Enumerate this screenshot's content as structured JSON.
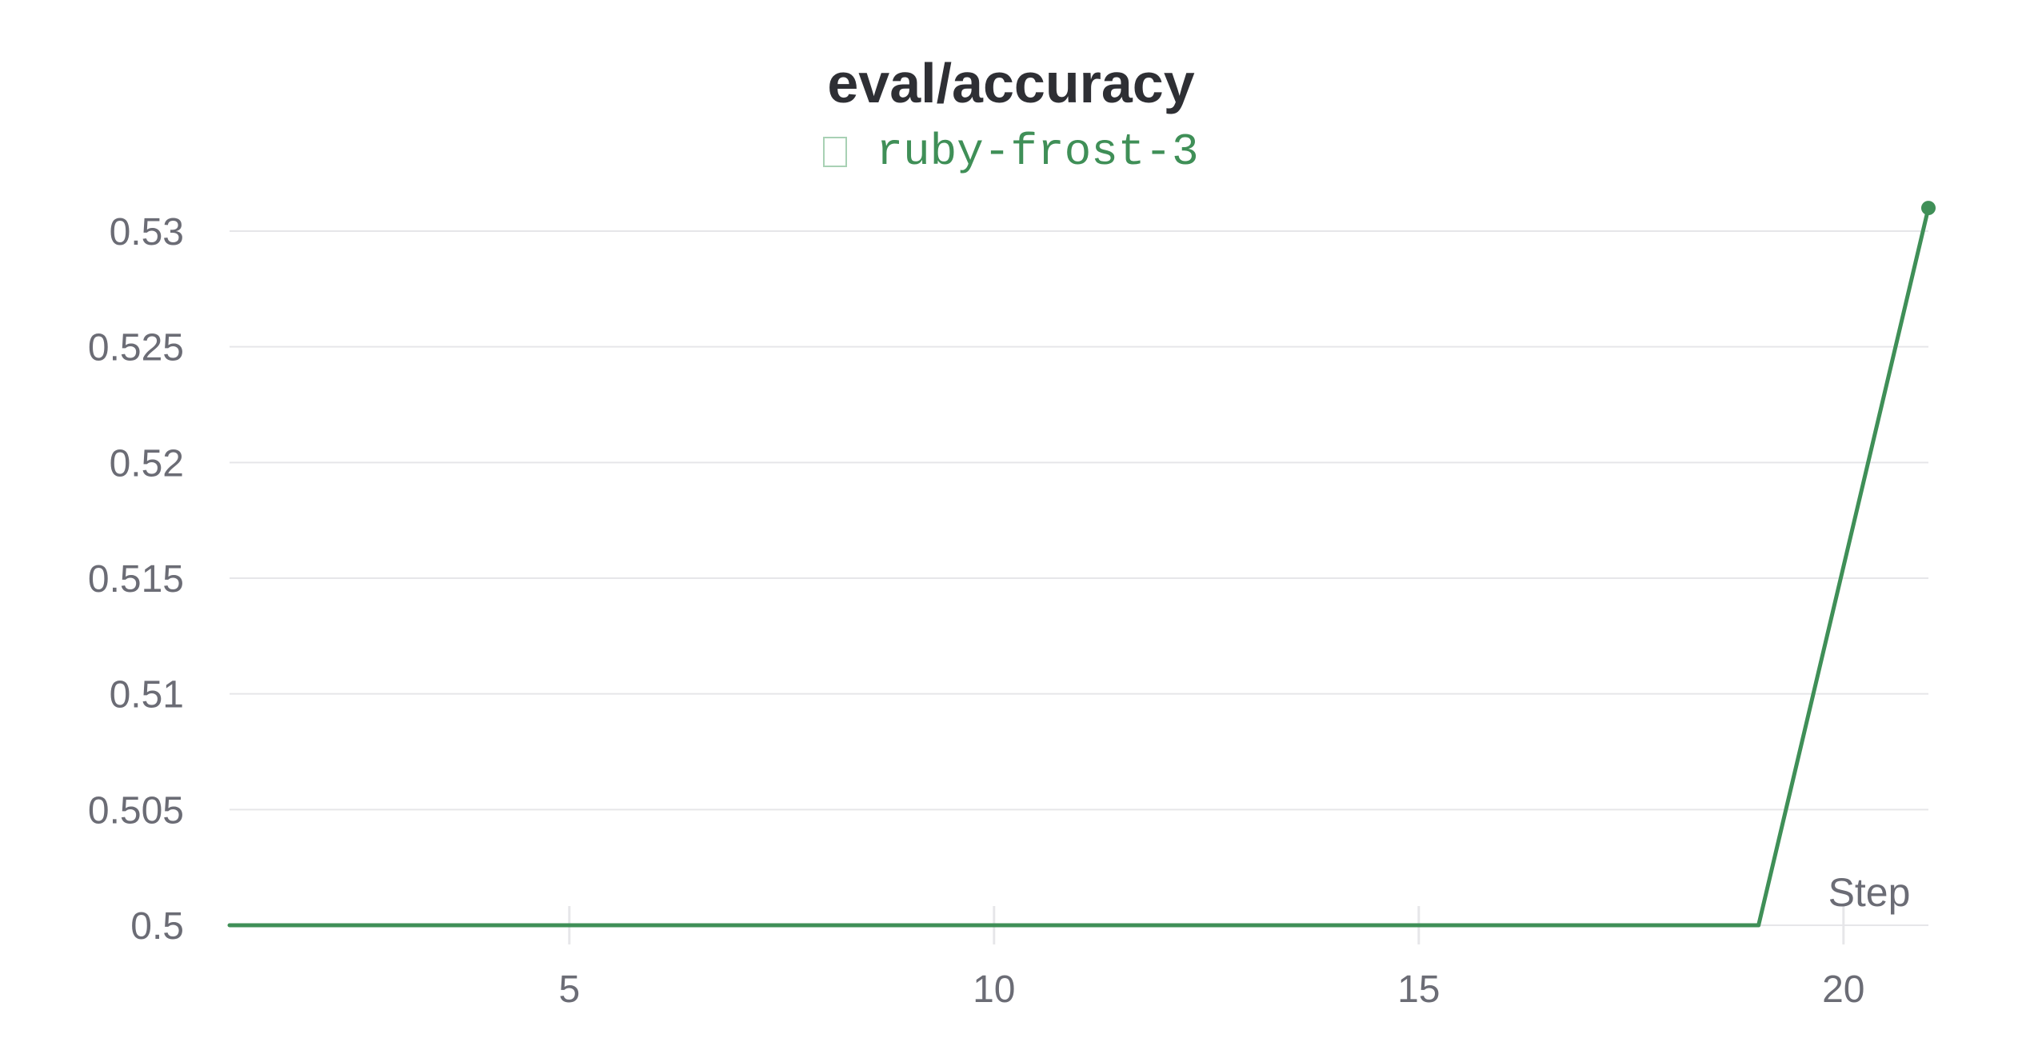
{
  "chart_data": {
    "type": "line",
    "title": "eval/accuracy",
    "xlabel": "Step",
    "ylabel": "",
    "xlim": [
      1,
      21
    ],
    "ylim": [
      0.5,
      0.531
    ],
    "x_ticks": [
      5,
      10,
      15,
      20
    ],
    "y_ticks": [
      0.5,
      0.505,
      0.51,
      0.515,
      0.52,
      0.525,
      0.53
    ],
    "y_tick_labels": [
      "0.5",
      "0.505",
      "0.51",
      "0.515",
      "0.52",
      "0.525",
      "0.53"
    ],
    "grid": "horizontal",
    "legend_placement": "top-center",
    "series": [
      {
        "name": "ruby-frost-3",
        "color": "#3f8f57",
        "x": [
          1,
          19,
          21
        ],
        "y": [
          0.5,
          0.5,
          0.531
        ]
      }
    ]
  },
  "colors": {
    "gridline": "#e6e6e9",
    "tick_label": "#6b6c75",
    "title": "#2e2f34",
    "series": "#3f8f57",
    "legend_swatch_border": "#a8d1b4"
  }
}
